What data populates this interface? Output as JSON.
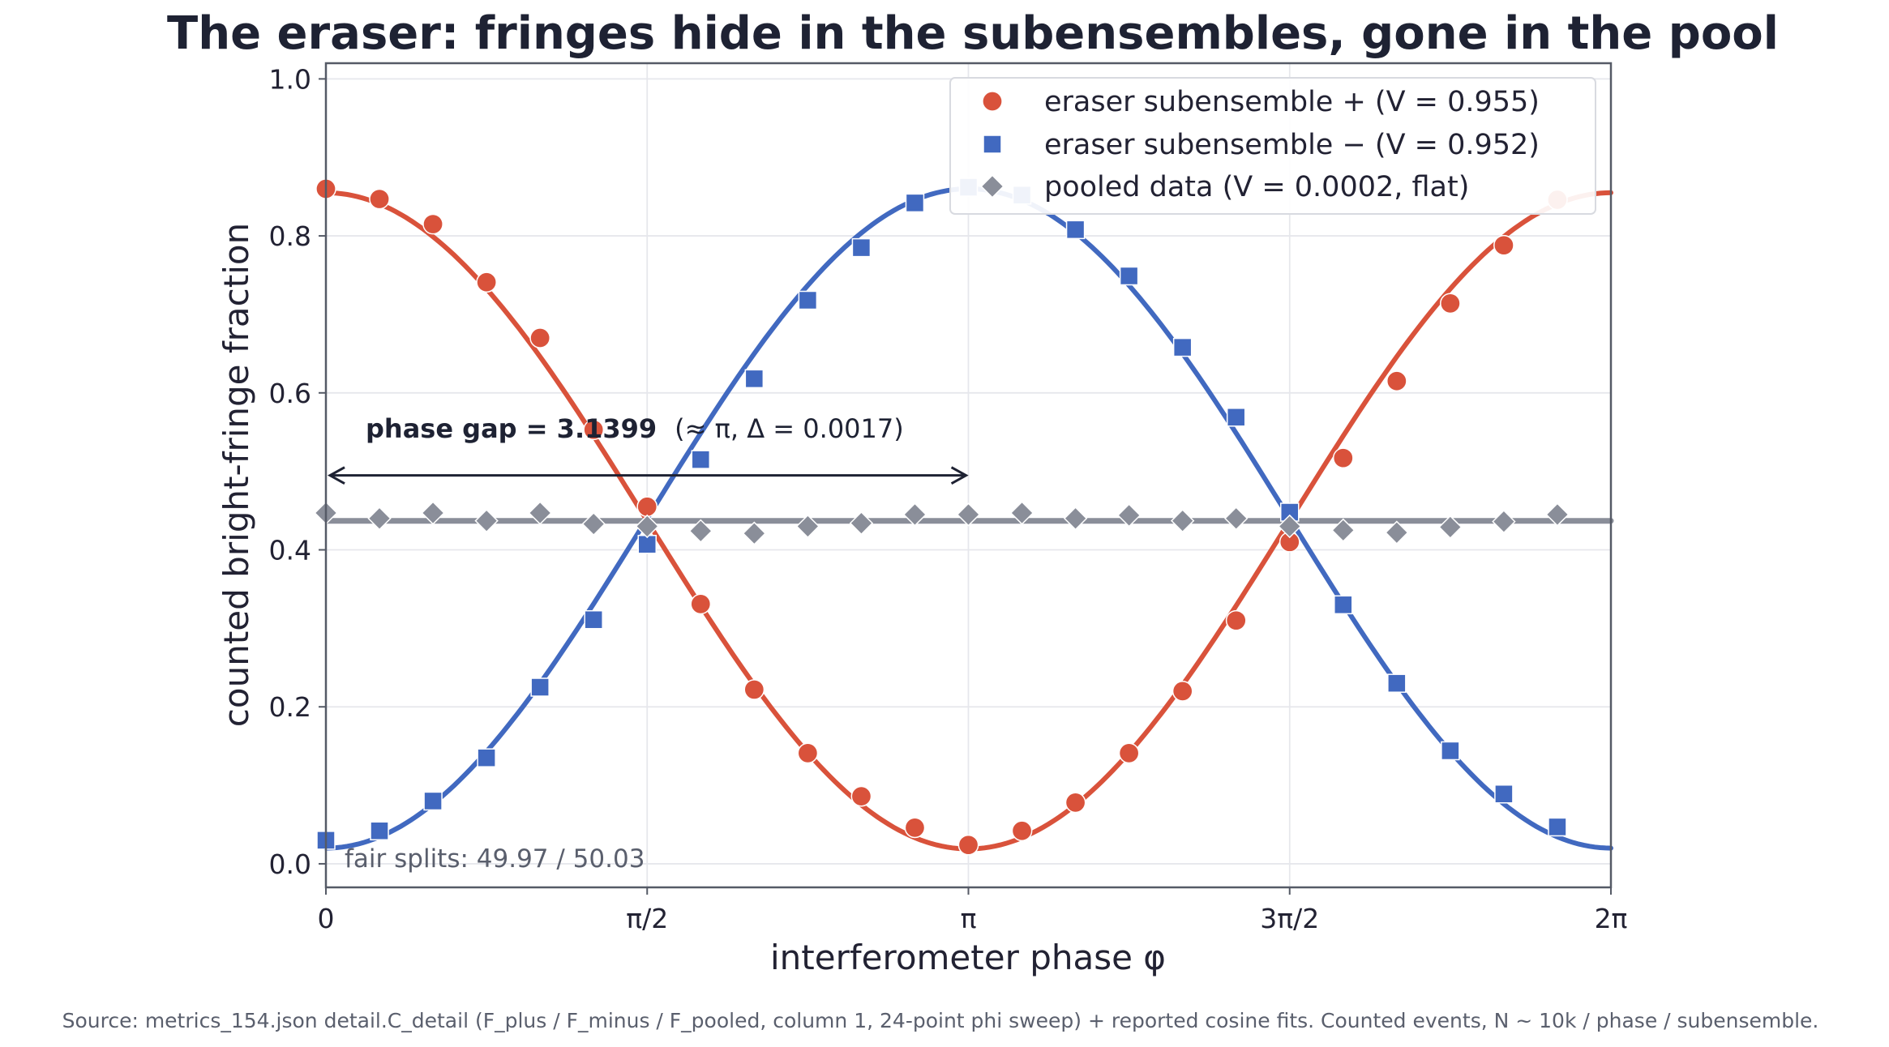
{
  "chart_data": {
    "type": "scatter",
    "title": "The eraser: fringes hide in the subensembles, gone in the pool",
    "xlabel": "interferometer phase  φ",
    "ylabel": "counted bright-fringe fraction",
    "xlim": [
      0,
      6.2832
    ],
    "ylim": [
      -0.03,
      1.02
    ],
    "grid": true,
    "legend_position": "top-right",
    "x_ticks": [
      {
        "value": 0,
        "label": "0"
      },
      {
        "value": 1.5708,
        "label": "π/2"
      },
      {
        "value": 3.1416,
        "label": "π"
      },
      {
        "value": 4.7124,
        "label": "3π/2"
      },
      {
        "value": 6.2832,
        "label": "2π"
      }
    ],
    "y_ticks": [
      {
        "value": 0.0,
        "label": "0.0"
      },
      {
        "value": 0.2,
        "label": "0.2"
      },
      {
        "value": 0.4,
        "label": "0.4"
      },
      {
        "value": 0.6,
        "label": "0.6"
      },
      {
        "value": 0.8,
        "label": "0.8"
      },
      {
        "value": 1.0,
        "label": "1.0"
      }
    ],
    "x": [
      0,
      0.2618,
      0.5236,
      0.7854,
      1.0472,
      1.309,
      1.5708,
      1.8326,
      2.0944,
      2.3562,
      2.618,
      2.8798,
      3.1416,
      3.4034,
      3.6652,
      3.927,
      4.1888,
      4.4506,
      4.7124,
      4.9742,
      5.236,
      5.4978,
      5.7596,
      6.0214
    ],
    "series": [
      {
        "name": "eraser subensemble  +   (V = 0.955)",
        "marker": "circle",
        "color": "#d9523b",
        "values": [
          0.86,
          0.847,
          0.815,
          0.741,
          0.67,
          0.553,
          0.455,
          0.331,
          0.222,
          0.141,
          0.086,
          0.046,
          0.024,
          0.042,
          0.078,
          0.141,
          0.22,
          0.31,
          0.41,
          0.517,
          0.615,
          0.714,
          0.788,
          0.846
        ],
        "fit": {
          "form": "cosine",
          "mean": 0.437,
          "amplitude": 0.418,
          "phase": 0
        }
      },
      {
        "name": "eraser subensemble  −   (V = 0.952)",
        "marker": "square",
        "color": "#4169c0",
        "values": [
          0.03,
          0.042,
          0.08,
          0.135,
          0.225,
          0.311,
          0.407,
          0.515,
          0.618,
          0.718,
          0.785,
          0.842,
          0.862,
          0.852,
          0.808,
          0.749,
          0.658,
          0.569,
          0.448,
          0.33,
          0.23,
          0.144,
          0.089,
          0.047
        ],
        "fit": {
          "form": "cosine",
          "mean": 0.44,
          "amplitude": -0.42,
          "phase": 0
        }
      },
      {
        "name": "pooled data  (V = 0.0002, flat)",
        "marker": "diamond",
        "color": "#8a8e99",
        "values": [
          0.447,
          0.44,
          0.447,
          0.437,
          0.447,
          0.433,
          0.43,
          0.424,
          0.421,
          0.43,
          0.434,
          0.445,
          0.445,
          0.447,
          0.44,
          0.444,
          0.437,
          0.44,
          0.43,
          0.425,
          0.422,
          0.429,
          0.436,
          0.445
        ],
        "fit": {
          "form": "flat",
          "mean": 0.437
        }
      }
    ],
    "annotations": {
      "phase_gap_bold": "phase gap = 3.1399",
      "phase_gap_rest": "(≈ π, Δ = 0.0017)",
      "arrow_from_x": 0.02,
      "arrow_to_x": 3.13,
      "arrow_y": 0.5,
      "fair_splits": "fair splits: 49.97 / 50.03"
    },
    "source": "Source: metrics_154.json detail.C_detail (F_plus / F_minus / F_pooled, column 1, 24-point phi sweep) + reported cosine fits. Counted events, N ~ 10k / phase / subensemble."
  }
}
